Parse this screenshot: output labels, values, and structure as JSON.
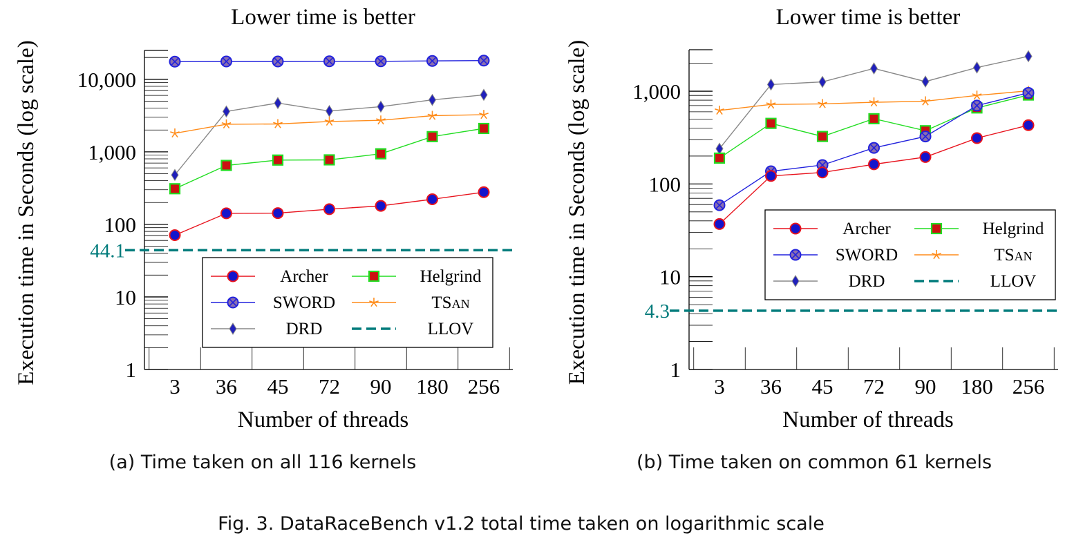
{
  "figure_caption": "Fig. 3.  DataRaceBench v1.2 total time taken on logarithmic scale",
  "colors": {
    "Archer": "#e8141e",
    "SWORD": "#2222dd",
    "DRD": "#888888",
    "Helgrind": "#22dd22",
    "TSan": "#ff8c1a",
    "LLOV": "#007b7b"
  },
  "legend_labels": {
    "Archer": "Archer",
    "Helgrind": "Helgrind",
    "SWORD": "SWORD",
    "TSan_main": "TS",
    "TSan_small": "AN",
    "DRD": "DRD",
    "LLOV": "LLOV"
  },
  "chart_data": [
    {
      "type": "line",
      "title": "Lower time is better",
      "caption": "(a) Time taken on all 116 kernels",
      "xlabel": "Number of threads",
      "ylabel": "Execution time in Seconds (log scale)",
      "yscale": "log",
      "ylim": [
        1,
        25000
      ],
      "yticks": [
        1,
        10,
        100,
        1000,
        10000
      ],
      "ytick_labels": [
        "1",
        "10",
        "100",
        "1,000",
        "10,000"
      ],
      "categories": [
        "3",
        "36",
        "45",
        "72",
        "90",
        "180",
        "256"
      ],
      "legend": "inside-bottom-right",
      "hline": {
        "name": "LLOV",
        "value": 44.1,
        "label": "44.1"
      },
      "series": [
        {
          "name": "SWORD",
          "values": [
            17500,
            17600,
            17600,
            17700,
            17700,
            17900,
            18100
          ]
        },
        {
          "name": "DRD",
          "values": [
            480,
            3600,
            4700,
            3650,
            4200,
            5200,
            6100
          ]
        },
        {
          "name": "TSan",
          "values": [
            1800,
            2400,
            2420,
            2620,
            2720,
            3150,
            3250
          ]
        },
        {
          "name": "Helgrind",
          "values": [
            310,
            650,
            770,
            775,
            940,
            1620,
            2100
          ]
        },
        {
          "name": "Archer",
          "values": [
            71,
            142,
            143,
            162,
            180,
            222,
            278
          ]
        }
      ]
    },
    {
      "type": "line",
      "title": "Lower time is better",
      "caption": "(b) Time taken on common 61 kernels",
      "xlabel": "Number of threads",
      "ylabel": "Execution time in Seconds (log scale)",
      "yscale": "log",
      "ylim": [
        1,
        2800
      ],
      "yticks": [
        1,
        10,
        100,
        1000
      ],
      "ytick_labels": [
        "1",
        "10",
        "100",
        "1,000"
      ],
      "categories": [
        "3",
        "36",
        "45",
        "72",
        "90",
        "180",
        "256"
      ],
      "legend": "inside-middle-right",
      "hline": {
        "name": "LLOV",
        "value": 4.3,
        "label": "4.3"
      },
      "series": [
        {
          "name": "DRD",
          "values": [
            240,
            1180,
            1260,
            1760,
            1270,
            1800,
            2380
          ]
        },
        {
          "name": "TSan",
          "values": [
            620,
            720,
            730,
            760,
            780,
            900,
            1010
          ]
        },
        {
          "name": "Helgrind",
          "values": [
            190,
            450,
            325,
            505,
            375,
            660,
            910
          ]
        },
        {
          "name": "SWORD",
          "values": [
            59,
            137,
            160,
            245,
            325,
            700,
            960
          ]
        },
        {
          "name": "Archer",
          "values": [
            37,
            122,
            133,
            163,
            195,
            312,
            430
          ]
        }
      ]
    }
  ]
}
